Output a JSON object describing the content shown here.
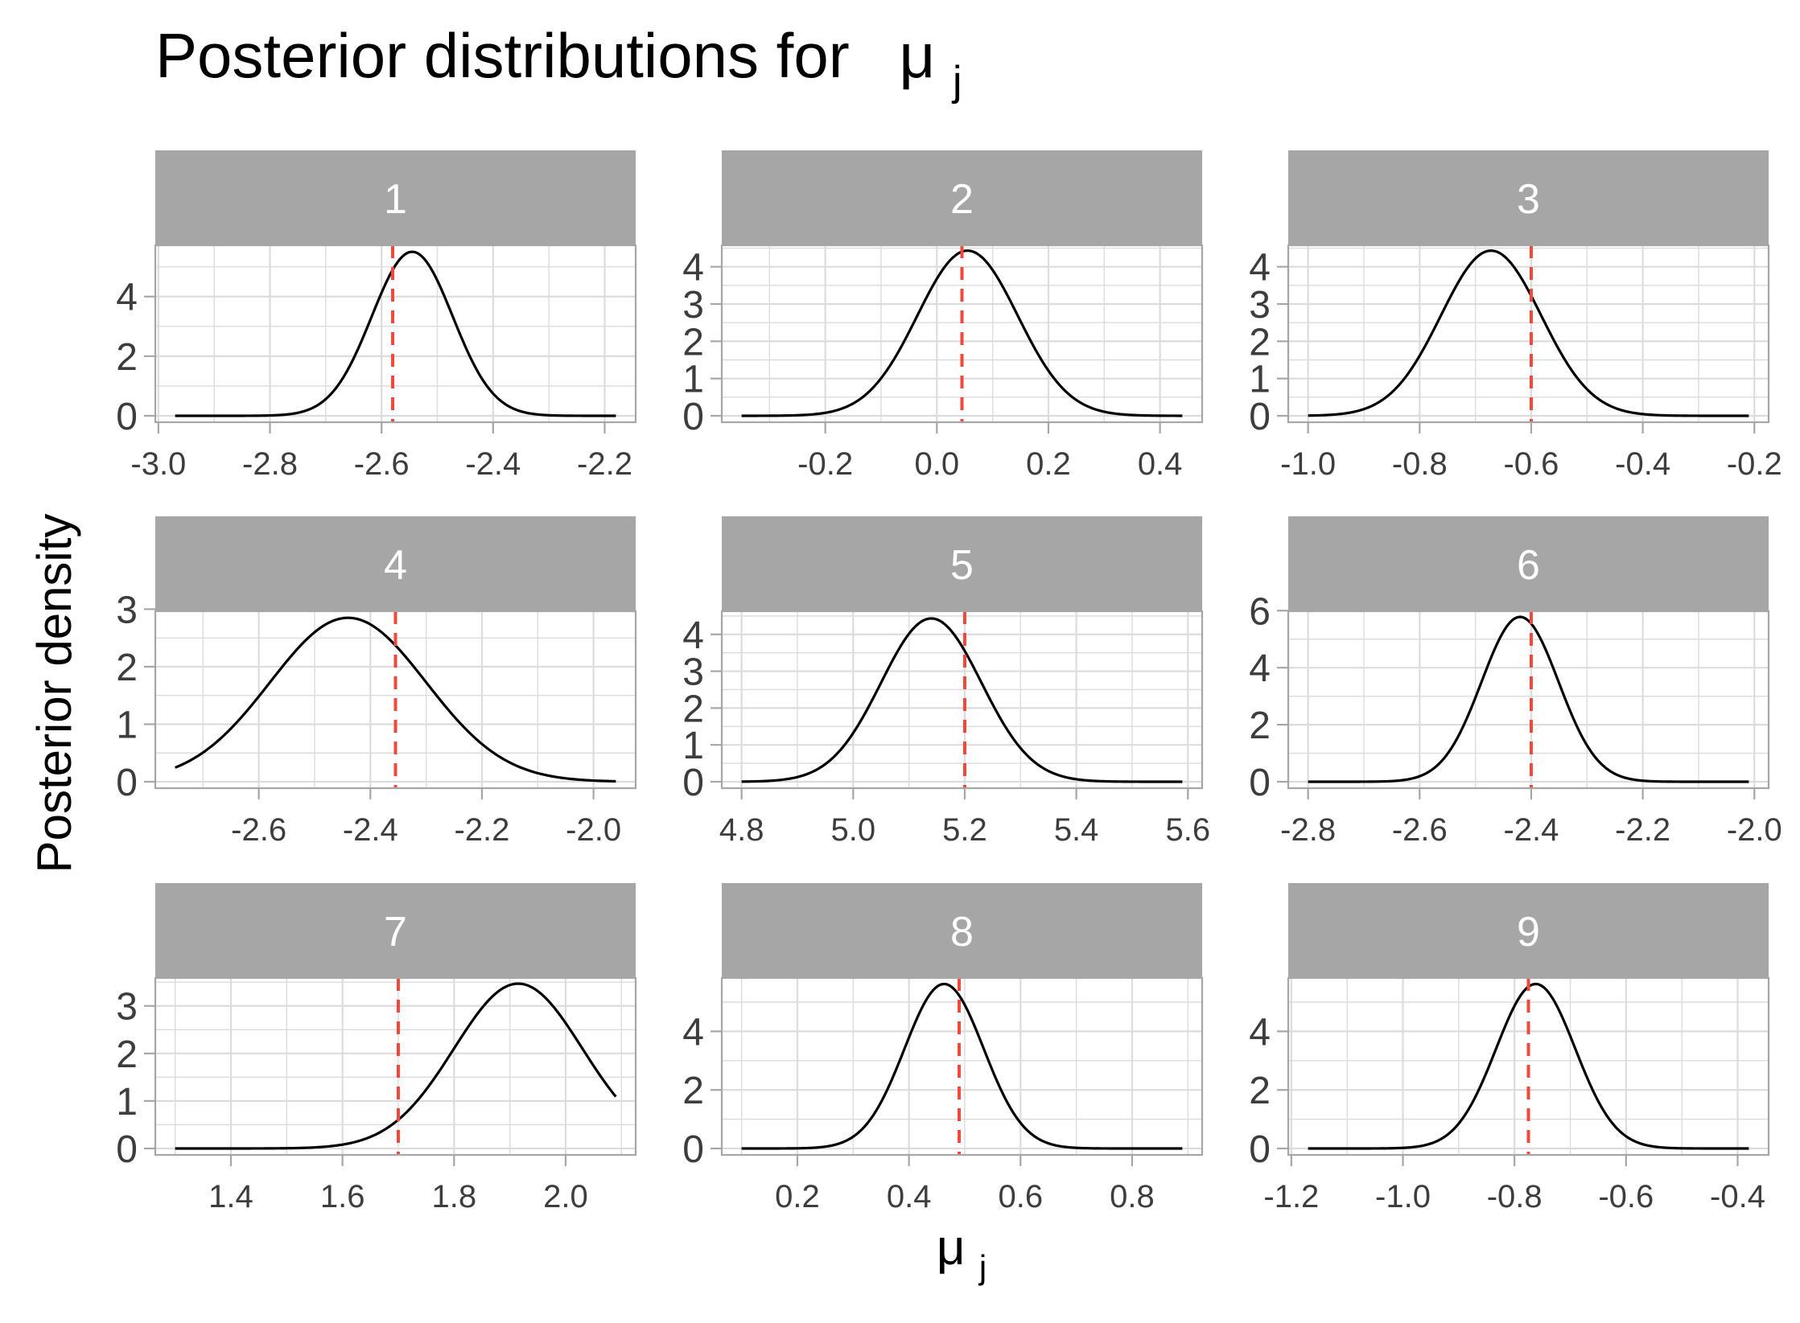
{
  "title": "Posterior distributions for",
  "title_symbol": "μ",
  "title_subscript": "j",
  "xlabel_symbol": "μ",
  "xlabel_subscript": "j",
  "ylabel": "Posterior density",
  "colors": {
    "strip_background": "#a6a6a6",
    "strip_text": "#ffffff",
    "grid": "#dcdcdc",
    "panel_border": "#a6a6a6",
    "density_line": "#000000",
    "reference_line": "#f0483a",
    "tick_text": "#3d3d3d"
  },
  "chart_data": {
    "type": "line",
    "layout": "facet-wrap 3x3",
    "grid": true,
    "reference_line_style": "dashed",
    "panels": [
      {
        "label": "1",
        "x_range": [
          -2.97,
          -2.18
        ],
        "ylim": [
          0,
          5.5
        ],
        "x_ticks": [
          "-3.0",
          "-2.8",
          "-2.6",
          "-2.4",
          "-2.2"
        ],
        "x_tick_values": [
          -3.0,
          -2.8,
          -2.6,
          -2.4,
          -2.2
        ],
        "y_ticks": [
          "0",
          "2",
          "4"
        ],
        "y_tick_values": [
          0,
          2,
          4
        ],
        "density": {
          "mean": -2.545,
          "sd": 0.0725
        },
        "reference_x": -2.58
      },
      {
        "label": "2",
        "x_range": [
          -0.35,
          0.44
        ],
        "ylim": [
          0,
          4.4
        ],
        "x_ticks": [
          "-0.2",
          "0.0",
          "0.2",
          "0.4"
        ],
        "x_tick_values": [
          -0.2,
          0.0,
          0.2,
          0.4
        ],
        "y_ticks": [
          "0",
          "1",
          "2",
          "3",
          "4"
        ],
        "y_tick_values": [
          0,
          1,
          2,
          3,
          4
        ],
        "density": {
          "mean": 0.055,
          "sd": 0.09
        },
        "reference_x": 0.045
      },
      {
        "label": "3",
        "x_range": [
          -1.0,
          -0.21
        ],
        "ylim": [
          0,
          4.4
        ],
        "x_ticks": [
          "-1.0",
          "-0.8",
          "-0.6",
          "-0.4",
          "-0.2"
        ],
        "x_tick_values": [
          -1.0,
          -0.8,
          -0.6,
          -0.4,
          -0.2
        ],
        "y_ticks": [
          "0",
          "1",
          "2",
          "3",
          "4"
        ],
        "y_tick_values": [
          0,
          1,
          2,
          3,
          4
        ],
        "density": {
          "mean": -0.672,
          "sd": 0.09
        },
        "reference_x": -0.6
      },
      {
        "label": "4",
        "x_range": [
          -2.75,
          -1.96
        ],
        "ylim": [
          0,
          2.85
        ],
        "x_ticks": [
          "-2.6",
          "-2.4",
          "-2.2",
          "-2.0"
        ],
        "x_tick_values": [
          -2.6,
          -2.4,
          -2.2,
          -2.0
        ],
        "y_ticks": [
          "0",
          "1",
          "2",
          "3"
        ],
        "y_tick_values": [
          0,
          1,
          2,
          3
        ],
        "density": {
          "mean": -2.44,
          "sd": 0.14
        },
        "reference_x": -2.355
      },
      {
        "label": "5",
        "x_range": [
          4.8,
          5.59
        ],
        "ylim": [
          0,
          4.45
        ],
        "x_ticks": [
          "4.8",
          "5.0",
          "5.2",
          "5.4",
          "5.6"
        ],
        "x_tick_values": [
          4.8,
          5.0,
          5.2,
          5.4,
          5.6
        ],
        "y_ticks": [
          "0",
          "1",
          "2",
          "3",
          "4"
        ],
        "y_tick_values": [
          0,
          1,
          2,
          3,
          4
        ],
        "density": {
          "mean": 5.14,
          "sd": 0.09
        },
        "reference_x": 5.2
      },
      {
        "label": "6",
        "x_range": [
          -2.8,
          -2.01
        ],
        "ylim": [
          0,
          5.75
        ],
        "x_ticks": [
          "-2.8",
          "-2.6",
          "-2.4",
          "-2.2",
          "-2.0"
        ],
        "x_tick_values": [
          -2.8,
          -2.6,
          -2.4,
          -2.2,
          -2.0
        ],
        "y_ticks": [
          "0",
          "2",
          "4",
          "6"
        ],
        "y_tick_values": [
          0,
          2,
          4,
          6
        ],
        "density": {
          "mean": -2.42,
          "sd": 0.069
        },
        "reference_x": -2.4
      },
      {
        "label": "7",
        "x_range": [
          1.3,
          2.09
        ],
        "ylim": [
          0,
          3.45
        ],
        "x_ticks": [
          "1.4",
          "1.6",
          "1.8",
          "2.0"
        ],
        "x_tick_values": [
          1.4,
          1.6,
          1.8,
          2.0
        ],
        "y_ticks": [
          "0",
          "1",
          "2",
          "3"
        ],
        "y_tick_values": [
          0,
          1,
          2,
          3
        ],
        "density": {
          "mean": 1.915,
          "sd": 0.115
        },
        "reference_x": 1.7
      },
      {
        "label": "8",
        "x_range": [
          0.1,
          0.89
        ],
        "ylim": [
          0,
          5.6
        ],
        "x_ticks": [
          "0.2",
          "0.4",
          "0.6",
          "0.8"
        ],
        "x_tick_values": [
          0.2,
          0.4,
          0.6,
          0.8
        ],
        "y_ticks": [
          "0",
          "2",
          "4"
        ],
        "y_tick_values": [
          0,
          2,
          4
        ],
        "density": {
          "mean": 0.463,
          "sd": 0.071
        },
        "reference_x": 0.49
      },
      {
        "label": "9",
        "x_range": [
          -1.17,
          -0.38
        ],
        "ylim": [
          0,
          5.6
        ],
        "x_ticks": [
          "-1.2",
          "-1.0",
          "-0.8",
          "-0.6",
          "-0.4"
        ],
        "x_tick_values": [
          -1.2,
          -1.0,
          -0.8,
          -0.6,
          -0.4
        ],
        "y_ticks": [
          "0",
          "2",
          "4"
        ],
        "y_tick_values": [
          0,
          2,
          4
        ],
        "density": {
          "mean": -0.762,
          "sd": 0.071
        },
        "reference_x": -0.775
      }
    ]
  }
}
